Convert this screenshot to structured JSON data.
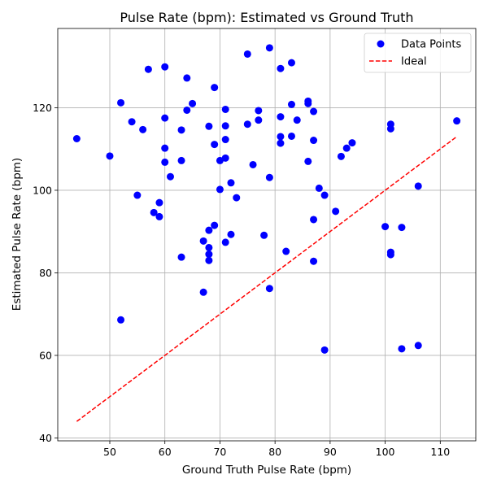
{
  "chart_data": {
    "type": "scatter",
    "title": "Pulse Rate (bpm): Estimated vs Ground Truth",
    "xlabel": "Ground Truth Pulse Rate (bpm)",
    "ylabel": "Estimated Pulse Rate (bpm)",
    "xlim": [
      40.55,
      116.45
    ],
    "ylim": [
      39.3,
      139.2
    ],
    "xticks": [
      50,
      60,
      70,
      80,
      90,
      100,
      110
    ],
    "yticks": [
      40,
      60,
      80,
      100,
      120
    ],
    "grid": true,
    "legend_position": "top-right",
    "series": [
      {
        "name": "Data Points",
        "kind": "scatter",
        "color": "#0000ff",
        "points": [
          [
            44,
            112.5
          ],
          [
            50,
            108.3
          ],
          [
            52,
            121.2
          ],
          [
            52,
            68.6
          ],
          [
            54,
            116.6
          ],
          [
            55,
            98.8
          ],
          [
            56,
            114.7
          ],
          [
            57,
            129.3
          ],
          [
            58,
            94.6
          ],
          [
            59,
            97.0
          ],
          [
            59,
            93.6
          ],
          [
            60,
            129.9
          ],
          [
            60,
            117.5
          ],
          [
            60,
            110.2
          ],
          [
            60,
            106.8
          ],
          [
            61,
            103.3
          ],
          [
            63,
            114.6
          ],
          [
            63,
            107.2
          ],
          [
            63,
            83.8
          ],
          [
            64,
            127.2
          ],
          [
            64,
            119.4
          ],
          [
            65,
            121.0
          ],
          [
            67,
            87.7
          ],
          [
            67,
            75.3
          ],
          [
            68,
            115.5
          ],
          [
            68,
            90.3
          ],
          [
            68,
            86.1
          ],
          [
            68,
            84.5
          ],
          [
            68,
            83.0
          ],
          [
            69,
            124.9
          ],
          [
            69,
            111.1
          ],
          [
            69,
            91.5
          ],
          [
            70,
            107.2
          ],
          [
            70,
            100.2
          ],
          [
            71,
            119.6
          ],
          [
            71,
            115.6
          ],
          [
            71,
            112.3
          ],
          [
            71,
            107.8
          ],
          [
            71,
            87.4
          ],
          [
            72,
            101.8
          ],
          [
            72,
            89.3
          ],
          [
            73,
            98.2
          ],
          [
            75,
            133.0
          ],
          [
            75,
            116.0
          ],
          [
            76,
            106.2
          ],
          [
            77,
            119.3
          ],
          [
            77,
            117.0
          ],
          [
            78,
            89.1
          ],
          [
            79,
            134.5
          ],
          [
            79,
            103.1
          ],
          [
            79,
            76.2
          ],
          [
            81,
            129.5
          ],
          [
            81,
            117.8
          ],
          [
            81,
            113.0
          ],
          [
            81,
            111.4
          ],
          [
            82,
            85.2
          ],
          [
            83,
            130.9
          ],
          [
            83,
            120.8
          ],
          [
            83,
            113.1
          ],
          [
            84,
            117.0
          ],
          [
            86,
            121.6
          ],
          [
            86,
            121.0
          ],
          [
            86,
            107.0
          ],
          [
            87,
            119.1
          ],
          [
            87,
            112.1
          ],
          [
            87,
            92.9
          ],
          [
            87,
            82.8
          ],
          [
            88,
            100.5
          ],
          [
            89,
            98.8
          ],
          [
            89,
            61.3
          ],
          [
            91,
            94.9
          ],
          [
            92,
            108.2
          ],
          [
            93,
            110.2
          ],
          [
            94,
            111.5
          ],
          [
            100,
            91.2
          ],
          [
            101,
            116.0
          ],
          [
            101,
            114.9
          ],
          [
            101,
            85.0
          ],
          [
            101,
            84.4
          ],
          [
            103,
            91.0
          ],
          [
            103,
            61.6
          ],
          [
            106,
            101.0
          ],
          [
            106,
            62.4
          ],
          [
            113,
            116.8
          ]
        ]
      },
      {
        "name": "Ideal",
        "kind": "line",
        "style": "dashed",
        "color": "#ff0000",
        "points": [
          [
            44,
            44
          ],
          [
            113,
            113
          ]
        ]
      }
    ]
  }
}
